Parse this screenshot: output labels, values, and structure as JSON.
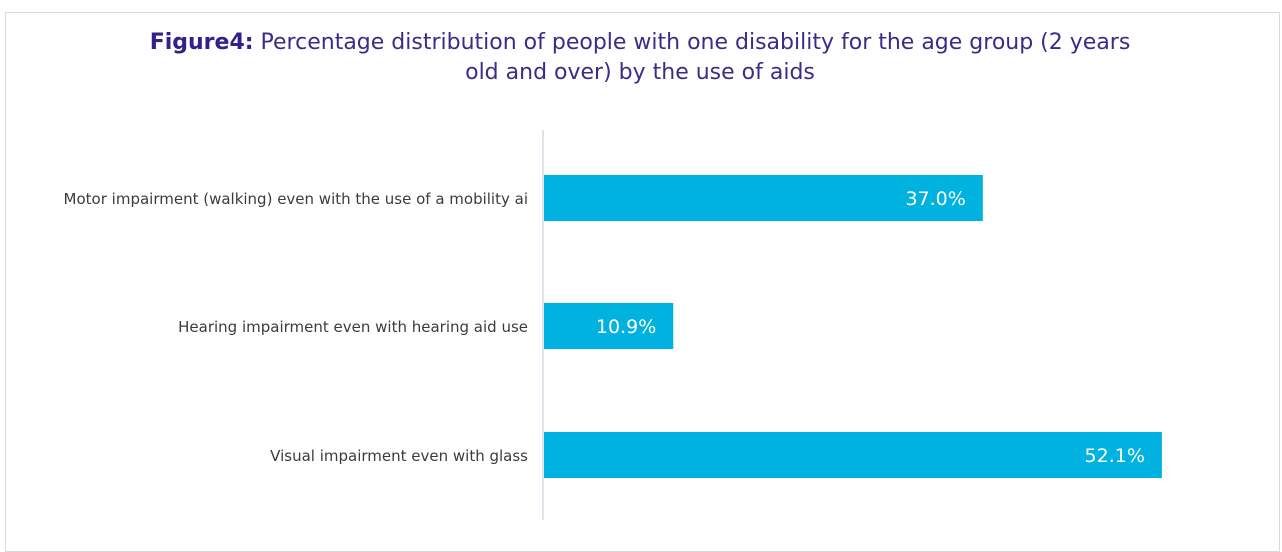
{
  "title": {
    "prefix": "Figure4:",
    "text": " Percentage distribution of people with one disability for the age group (2 years old and over) by the use of aids"
  },
  "colors": {
    "bar": "#00b2e0",
    "title": "#3b2d87",
    "axis": "#d9d9e6",
    "category_text": "#3c3c3c",
    "label_text": "#ffffff"
  },
  "chart_data": {
    "type": "bar",
    "orientation": "horizontal",
    "title": "Figure4: Percentage distribution of people with one disability for the age group (2 years old and over) by the use of aids",
    "categories": [
      "Motor impairment (walking) even with the use of a mobility ai",
      "Hearing impairment even with hearing aid use",
      "Visual impairment even with glass"
    ],
    "values": [
      37.0,
      10.9,
      52.1
    ],
    "data_labels": [
      "37.0%",
      "10.9%",
      "52.1%"
    ],
    "xlim": [
      0,
      60
    ],
    "xlabel": "",
    "ylabel": "",
    "grid": false,
    "legend": "none"
  }
}
